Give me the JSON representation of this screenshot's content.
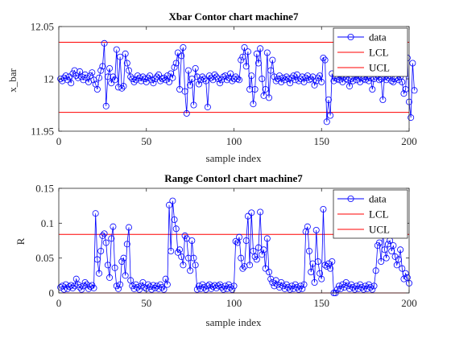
{
  "colors": {
    "data": "#0000ff",
    "limit": "#ff0000",
    "axis": "#262626"
  },
  "chart_data": [
    {
      "type": "line",
      "title": "Xbar Contor chart machine7",
      "xlabel": "sample index",
      "ylabel": "x_bar",
      "xlim": [
        0,
        200
      ],
      "ylim": [
        11.95,
        12.05
      ],
      "xticks": [
        "0",
        "50",
        "100",
        "150",
        "200"
      ],
      "yticks": [
        "11.95",
        "12",
        "12.05"
      ],
      "legend_position": "top-right",
      "legend": [
        "data",
        "LCL",
        "UCL"
      ],
      "lines": {
        "UCL": 12.035,
        "LCL": 11.968
      },
      "series": [
        {
          "name": "data",
          "values": [
            12.0,
            11.998,
            12.001,
            12.003,
            11.999,
            12.002,
            11.996,
            12.005,
            12.008,
            12.003,
            12.001,
            12.007,
            12.002,
            11.999,
            12.004,
            12.001,
            11.997,
            12.003,
            12.006,
            11.999,
            11.995,
            11.99,
            12.001,
            12.008,
            12.012,
            12.034,
            11.974,
            12.002,
            12.01,
            11.996,
            12.002,
            11.999,
            12.028,
            11.992,
            12.021,
            11.991,
            11.993,
            12.024,
            12.015,
            12.008,
            12.002,
            12.0,
            11.997,
            11.999,
            12.003,
            12.001,
            11.998,
            12.002,
            12.0,
            11.997,
            12.001,
            12.003,
            11.999,
            11.996,
            12.0,
            12.002,
            12.004,
            11.998,
            12.0,
            12.001,
            11.999,
            12.003,
            11.997,
            12.005,
            12.001,
            12.011,
            12.015,
            12.025,
            11.99,
            12.022,
            12.03,
            11.988,
            11.967,
            12.008,
            11.994,
            12.0,
            11.975,
            12.01,
            12.002,
            11.995,
            11.999,
            12.002,
            12.0,
            11.998,
            11.973,
            12.003,
            12.001,
            11.999,
            12.004,
            12.002,
            12.0,
            11.996,
            11.999,
            12.002,
            12.003,
            11.999,
            12.001,
            12.005,
            11.998,
            12.0,
            12.002,
            12.0,
            11.999,
            12.018,
            12.021,
            12.03,
            12.012,
            12.026,
            11.99,
            12.003,
            11.976,
            11.99,
            12.024,
            12.015,
            12.029,
            12.0,
            11.984,
            11.99,
            12.025,
            11.982,
            12.008,
            12.018,
            12.002,
            11.998,
            12.0,
            12.003,
            11.997,
            12.001,
            11.999,
            12.002,
            12.0,
            11.996,
            12.001,
            12.003,
            11.999,
            12.004,
            11.998,
            12.0,
            12.002,
            11.997,
            12.001,
            12.003,
            11.999,
            12.0,
            12.002,
            11.994,
            11.998,
            12.001,
            12.003,
            11.997,
            12.02,
            12.018,
            11.959,
            11.98,
            11.965,
            12.005,
            11.998,
            12.001,
            12.0,
            11.999,
            12.003,
            11.997,
            12.002,
            12.0,
            11.999,
            11.993,
            12.0,
            11.998,
            12.002,
            11.999,
            12.003,
            11.997,
            12.001,
            12.0,
            11.999,
            12.002,
            11.998,
            12.001,
            11.99,
            12.0,
            12.002,
            12.003,
            11.999,
            12.0,
            11.98,
            12.002,
            11.999,
            12.001,
            12.003,
            11.998,
            11.997,
            12.0,
            12.001,
            11.999,
            12.002,
            11.997,
            11.986,
            11.99,
            12.02,
            11.978,
            11.963,
            12.015,
            11.989
          ]
        }
      ]
    },
    {
      "type": "line",
      "title": "Range Contorl chart machine7",
      "xlabel": "sample index",
      "ylabel": "R",
      "xlim": [
        0,
        200
      ],
      "ylim": [
        0,
        0.15
      ],
      "xticks": [
        "0",
        "50",
        "100",
        "150",
        "200"
      ],
      "yticks": [
        "0",
        "0.05",
        "0.1",
        "0.15"
      ],
      "legend_position": "top-right",
      "legend": [
        "data",
        "LCL",
        "UCL"
      ],
      "lines": {
        "UCL": 0.084,
        "LCL": 0.0
      },
      "series": [
        {
          "name": "data",
          "values": [
            0.008,
            0.01,
            0.005,
            0.012,
            0.006,
            0.009,
            0.011,
            0.007,
            0.01,
            0.02,
            0.012,
            0.008,
            0.005,
            0.01,
            0.015,
            0.012,
            0.006,
            0.009,
            0.011,
            0.007,
            0.114,
            0.048,
            0.028,
            0.06,
            0.082,
            0.085,
            0.072,
            0.04,
            0.022,
            0.078,
            0.095,
            0.036,
            0.01,
            0.006,
            0.012,
            0.045,
            0.05,
            0.025,
            0.07,
            0.094,
            0.018,
            0.01,
            0.006,
            0.012,
            0.008,
            0.005,
            0.01,
            0.015,
            0.008,
            0.006,
            0.012,
            0.009,
            0.005,
            0.011,
            0.007,
            0.01,
            0.006,
            0.012,
            0.008,
            0.005,
            0.02,
            0.012,
            0.126,
            0.06,
            0.132,
            0.105,
            0.092,
            0.058,
            0.062,
            0.052,
            0.04,
            0.082,
            0.078,
            0.05,
            0.032,
            0.075,
            0.05,
            0.04,
            0.005,
            0.01,
            0.006,
            0.012,
            0.008,
            0.005,
            0.01,
            0.012,
            0.006,
            0.009,
            0.011,
            0.007,
            0.01,
            0.012,
            0.008,
            0.005,
            0.01,
            0.006,
            0.012,
            0.008,
            0.005,
            0.01,
            0.074,
            0.072,
            0.08,
            0.05,
            0.035,
            0.038,
            0.075,
            0.11,
            0.04,
            0.115,
            0.06,
            0.052,
            0.048,
            0.065,
            0.116,
            0.055,
            0.062,
            0.035,
            0.078,
            0.03,
            0.02,
            0.015,
            0.01,
            0.018,
            0.012,
            0.008,
            0.015,
            0.01,
            0.006,
            0.012,
            0.008,
            0.005,
            0.01,
            0.006,
            0.012,
            0.008,
            0.005,
            0.01,
            0.006,
            0.012,
            0.088,
            0.095,
            0.06,
            0.03,
            0.042,
            0.015,
            0.09,
            0.045,
            0.028,
            0.02,
            0.12,
            0.04,
            0.038,
            0.042,
            0.035,
            0.045,
            0.0,
            0.0,
            0.005,
            0.01,
            0.006,
            0.012,
            0.008,
            0.015,
            0.01,
            0.006,
            0.012,
            0.008,
            0.005,
            0.01,
            0.006,
            0.012,
            0.008,
            0.005,
            0.01,
            0.006,
            0.012,
            0.008,
            0.005,
            0.01,
            0.032,
            0.068,
            0.072,
            0.045,
            0.085,
            0.062,
            0.05,
            0.07,
            0.075,
            0.06,
            0.068,
            0.052,
            0.04,
            0.048,
            0.062,
            0.035,
            0.02,
            0.028,
            0.022,
            0.014
          ]
        }
      ]
    }
  ]
}
